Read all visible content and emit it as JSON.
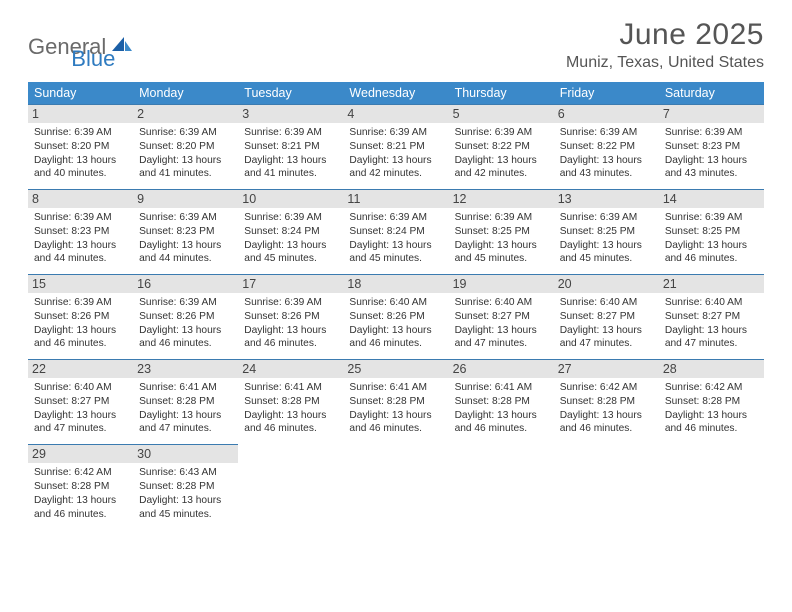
{
  "brand": {
    "part1": "General",
    "part2": "Blue"
  },
  "title": "June 2025",
  "location": "Muniz, Texas, United States",
  "colors": {
    "header_bg": "#3b89c9",
    "header_text": "#ffffff",
    "daynum_bg": "#e4e4e4",
    "border": "#3b7bb0",
    "title_color": "#555555",
    "brand_gray": "#6a6a6a",
    "brand_blue": "#2f7bc0"
  },
  "dayNames": [
    "Sunday",
    "Monday",
    "Tuesday",
    "Wednesday",
    "Thursday",
    "Friday",
    "Saturday"
  ],
  "weeks": [
    [
      {
        "n": "1",
        "sr": "6:39 AM",
        "ss": "8:20 PM",
        "dl": "13 hours and 40 minutes."
      },
      {
        "n": "2",
        "sr": "6:39 AM",
        "ss": "8:20 PM",
        "dl": "13 hours and 41 minutes."
      },
      {
        "n": "3",
        "sr": "6:39 AM",
        "ss": "8:21 PM",
        "dl": "13 hours and 41 minutes."
      },
      {
        "n": "4",
        "sr": "6:39 AM",
        "ss": "8:21 PM",
        "dl": "13 hours and 42 minutes."
      },
      {
        "n": "5",
        "sr": "6:39 AM",
        "ss": "8:22 PM",
        "dl": "13 hours and 42 minutes."
      },
      {
        "n": "6",
        "sr": "6:39 AM",
        "ss": "8:22 PM",
        "dl": "13 hours and 43 minutes."
      },
      {
        "n": "7",
        "sr": "6:39 AM",
        "ss": "8:23 PM",
        "dl": "13 hours and 43 minutes."
      }
    ],
    [
      {
        "n": "8",
        "sr": "6:39 AM",
        "ss": "8:23 PM",
        "dl": "13 hours and 44 minutes."
      },
      {
        "n": "9",
        "sr": "6:39 AM",
        "ss": "8:23 PM",
        "dl": "13 hours and 44 minutes."
      },
      {
        "n": "10",
        "sr": "6:39 AM",
        "ss": "8:24 PM",
        "dl": "13 hours and 45 minutes."
      },
      {
        "n": "11",
        "sr": "6:39 AM",
        "ss": "8:24 PM",
        "dl": "13 hours and 45 minutes."
      },
      {
        "n": "12",
        "sr": "6:39 AM",
        "ss": "8:25 PM",
        "dl": "13 hours and 45 minutes."
      },
      {
        "n": "13",
        "sr": "6:39 AM",
        "ss": "8:25 PM",
        "dl": "13 hours and 45 minutes."
      },
      {
        "n": "14",
        "sr": "6:39 AM",
        "ss": "8:25 PM",
        "dl": "13 hours and 46 minutes."
      }
    ],
    [
      {
        "n": "15",
        "sr": "6:39 AM",
        "ss": "8:26 PM",
        "dl": "13 hours and 46 minutes."
      },
      {
        "n": "16",
        "sr": "6:39 AM",
        "ss": "8:26 PM",
        "dl": "13 hours and 46 minutes."
      },
      {
        "n": "17",
        "sr": "6:39 AM",
        "ss": "8:26 PM",
        "dl": "13 hours and 46 minutes."
      },
      {
        "n": "18",
        "sr": "6:40 AM",
        "ss": "8:26 PM",
        "dl": "13 hours and 46 minutes."
      },
      {
        "n": "19",
        "sr": "6:40 AM",
        "ss": "8:27 PM",
        "dl": "13 hours and 47 minutes."
      },
      {
        "n": "20",
        "sr": "6:40 AM",
        "ss": "8:27 PM",
        "dl": "13 hours and 47 minutes."
      },
      {
        "n": "21",
        "sr": "6:40 AM",
        "ss": "8:27 PM",
        "dl": "13 hours and 47 minutes."
      }
    ],
    [
      {
        "n": "22",
        "sr": "6:40 AM",
        "ss": "8:27 PM",
        "dl": "13 hours and 47 minutes."
      },
      {
        "n": "23",
        "sr": "6:41 AM",
        "ss": "8:28 PM",
        "dl": "13 hours and 47 minutes."
      },
      {
        "n": "24",
        "sr": "6:41 AM",
        "ss": "8:28 PM",
        "dl": "13 hours and 46 minutes."
      },
      {
        "n": "25",
        "sr": "6:41 AM",
        "ss": "8:28 PM",
        "dl": "13 hours and 46 minutes."
      },
      {
        "n": "26",
        "sr": "6:41 AM",
        "ss": "8:28 PM",
        "dl": "13 hours and 46 minutes."
      },
      {
        "n": "27",
        "sr": "6:42 AM",
        "ss": "8:28 PM",
        "dl": "13 hours and 46 minutes."
      },
      {
        "n": "28",
        "sr": "6:42 AM",
        "ss": "8:28 PM",
        "dl": "13 hours and 46 minutes."
      }
    ],
    [
      {
        "n": "29",
        "sr": "6:42 AM",
        "ss": "8:28 PM",
        "dl": "13 hours and 46 minutes."
      },
      {
        "n": "30",
        "sr": "6:43 AM",
        "ss": "8:28 PM",
        "dl": "13 hours and 45 minutes."
      },
      null,
      null,
      null,
      null,
      null
    ]
  ],
  "labels": {
    "sunrise": "Sunrise:",
    "sunset": "Sunset:",
    "daylight": "Daylight:"
  }
}
